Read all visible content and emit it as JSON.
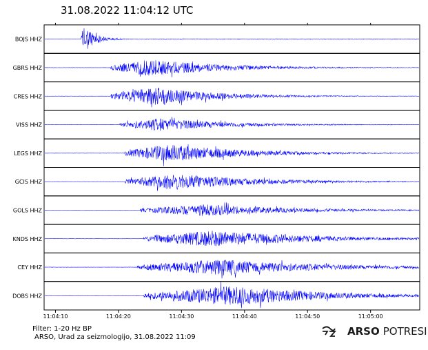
{
  "header": {
    "title": "31.08.2022  11:04:12 UTC"
  },
  "footer": {
    "filter": "Filter: 1-20 Hz BP",
    "credit": "ARSO, Urad za seizmologijo, 31.08.2022  11:09"
  },
  "brand": {
    "name": "ARSO",
    "suffix": "POTRESI",
    "logo_icon": "arso-logo-icon"
  },
  "chart_data": {
    "type": "line",
    "title": "31.08.2022  11:04:12 UTC",
    "xlabel": "",
    "ylabel": "",
    "trace_color": "#0000ff",
    "x_range_seconds_after_11_04_00": [
      8.2,
      67.8
    ],
    "x_ticks": [
      {
        "seconds": 10,
        "label": "11:04:10"
      },
      {
        "seconds": 20,
        "label": "11:04:20"
      },
      {
        "seconds": 30,
        "label": "11:04:30"
      },
      {
        "seconds": 40,
        "label": "11:04:40"
      },
      {
        "seconds": 50,
        "label": "11:04:50"
      },
      {
        "seconds": 60,
        "label": "11:05:00"
      }
    ],
    "series": [
      {
        "name": "BOJS HHZ",
        "onset": 14.0,
        "peak": 14.6,
        "duration": 4,
        "amplitude": 0.98
      },
      {
        "name": "GBRS HHZ",
        "onset": 18.8,
        "peak": 25.0,
        "duration": 25,
        "amplitude": 0.6
      },
      {
        "name": "CRES HHZ",
        "onset": 18.8,
        "peak": 25.5,
        "duration": 22,
        "amplitude": 0.65
      },
      {
        "name": "VISS HHZ",
        "onset": 20.2,
        "peak": 26.5,
        "duration": 24,
        "amplitude": 0.45
      },
      {
        "name": "LEGS HHZ",
        "onset": 21.0,
        "peak": 28.0,
        "duration": 26,
        "amplitude": 0.62
      },
      {
        "name": "GCIS HHZ",
        "onset": 21.0,
        "peak": 29.5,
        "duration": 28,
        "amplitude": 0.55
      },
      {
        "name": "GOLS HHZ",
        "onset": 23.5,
        "peak": 33.5,
        "duration": 30,
        "amplitude": 0.42
      },
      {
        "name": "KNDS HHZ",
        "onset": 24.0,
        "peak": 35.0,
        "duration": 34,
        "amplitude": 0.58
      },
      {
        "name": "CEY HHZ",
        "onset": 23.0,
        "peak": 36.0,
        "duration": 36,
        "amplitude": 0.55
      },
      {
        "name": "DOBS HHZ",
        "onset": 24.0,
        "peak": 38.5,
        "duration": 30,
        "amplitude": 0.7
      }
    ]
  }
}
